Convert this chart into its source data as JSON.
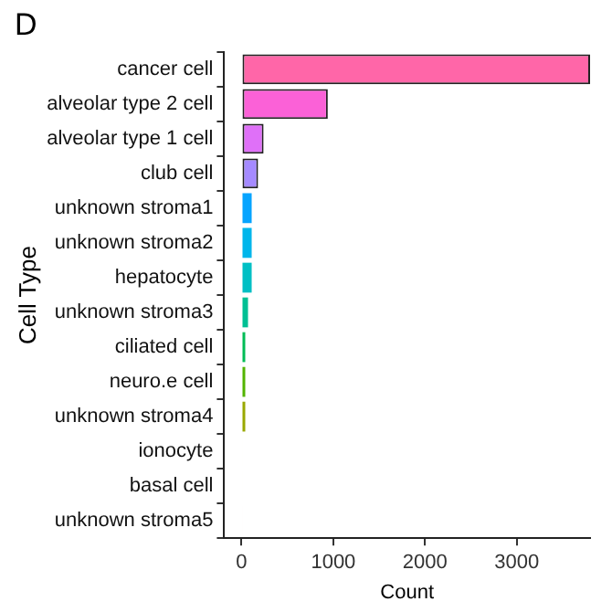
{
  "chart_data": {
    "type": "bar",
    "orientation": "horizontal",
    "title": "D",
    "xlabel": "Count",
    "ylabel": "Cell Type",
    "categories": [
      "cancer cell",
      "alveolar type 2 cell",
      "alveolar type 1 cell",
      "club cell",
      "unknown stroma1",
      "unknown stroma2",
      "hepatocyte",
      "unknown stroma3",
      "ciliated cell",
      "neuro.e cell",
      "unknown stroma4",
      "ionocyte",
      "basal cell",
      "unknown stroma5"
    ],
    "values": [
      3800,
      940,
      240,
      180,
      110,
      110,
      110,
      70,
      40,
      40,
      40,
      10,
      10,
      10
    ],
    "colors": [
      "#ff66a8",
      "#fb61d7",
      "#df70f8",
      "#a58aff",
      "#06a4ff",
      "#00b6eb",
      "#00bfc4",
      "#00c094",
      "#00bc56",
      "#53b400",
      "#99a800",
      "#c49a00",
      "#e38900",
      "#f8766d"
    ],
    "xlim": [
      -190,
      3800
    ],
    "xticks": [
      0,
      1000,
      2000,
      3000
    ],
    "grid": false,
    "legend": false
  }
}
